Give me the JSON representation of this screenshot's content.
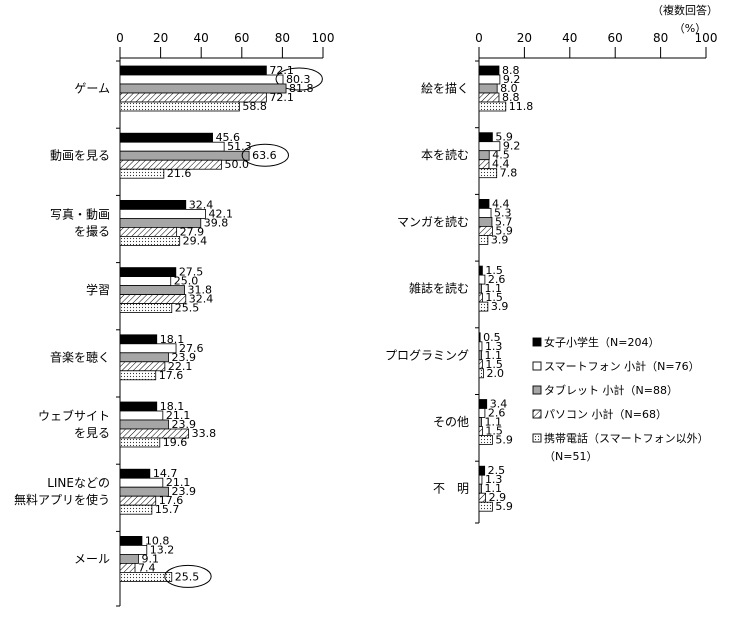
{
  "note": {
    "line1": "（複数回答）",
    "line2": "（%）"
  },
  "legend": {
    "items": [
      {
        "label": "女子小学生（N=204）",
        "pattern": "black"
      },
      {
        "label": "スマートフォン 小計（N=76）",
        "pattern": "white"
      },
      {
        "label": "タブレット 小計（N=88）",
        "pattern": "gray"
      },
      {
        "label": "パソコン 小計（N=68）",
        "pattern": "hatch"
      },
      {
        "label": "携帯電話（スマートフォン以外）",
        "pattern": "dots"
      }
    ],
    "extra": "（N=51）"
  },
  "chart_data": [
    {
      "type": "bar",
      "orientation": "horizontal",
      "xlim": [
        0,
        100
      ],
      "xticks": [
        "0",
        "20",
        "40",
        "60",
        "80",
        "100"
      ],
      "categories": [
        [
          "ゲーム"
        ],
        [
          "動画を見る"
        ],
        [
          "写真・動画",
          "を撮る"
        ],
        [
          "学習"
        ],
        [
          "音楽を聴く"
        ],
        [
          "ウェブサイト",
          "を見る"
        ],
        [
          "LINEなどの",
          "無料アプリを使う"
        ],
        [
          "メール"
        ]
      ],
      "values": [
        [
          72.1,
          80.3,
          81.8,
          72.1,
          58.8
        ],
        [
          45.6,
          51.3,
          63.6,
          50.0,
          21.6
        ],
        [
          32.4,
          42.1,
          39.8,
          27.9,
          29.4
        ],
        [
          27.5,
          25.0,
          31.8,
          32.4,
          25.5
        ],
        [
          18.1,
          27.6,
          23.9,
          22.1,
          17.6
        ],
        [
          18.1,
          21.1,
          23.9,
          33.8,
          19.6
        ],
        [
          14.7,
          21.1,
          23.9,
          17.6,
          15.7
        ],
        [
          10.8,
          13.2,
          9.1,
          7.4,
          25.5
        ]
      ],
      "labels": [
        [
          "72.1",
          "80.3",
          "81.8",
          "72.1",
          "58.8"
        ],
        [
          "45.6",
          "51.3",
          "63.6",
          "50.0",
          "21.6"
        ],
        [
          "32.4",
          "42.1",
          "39.8",
          "27.9",
          "29.4"
        ],
        [
          "27.5",
          "25.0",
          "31.8",
          "32.4",
          "25.5"
        ],
        [
          "18.1",
          "27.6",
          "23.9",
          "22.1",
          "17.6"
        ],
        [
          "18.1",
          "21.1",
          "23.9",
          "33.8",
          "19.6"
        ],
        [
          "14.7",
          "21.1",
          "23.9",
          "17.6",
          "15.7"
        ],
        [
          "10.8",
          "13.2",
          "9.1",
          "7.4",
          "25.5"
        ]
      ],
      "highlighted": [
        [
          0,
          1
        ],
        [
          1,
          2
        ],
        [
          7,
          4
        ]
      ]
    },
    {
      "type": "bar",
      "orientation": "horizontal",
      "xlim": [
        0,
        100
      ],
      "xticks": [
        "0",
        "20",
        "40",
        "60",
        "80",
        "100"
      ],
      "categories": [
        [
          "絵を描く"
        ],
        [
          "本を読む"
        ],
        [
          "マンガを読む"
        ],
        [
          "雑誌を読む"
        ],
        [
          "プログラミング"
        ],
        [
          "その他"
        ],
        [
          "不　明"
        ]
      ],
      "values": [
        [
          8.8,
          9.2,
          8.0,
          8.8,
          11.8
        ],
        [
          5.9,
          9.2,
          4.5,
          4.4,
          7.8
        ],
        [
          4.4,
          5.3,
          5.7,
          5.9,
          3.9
        ],
        [
          1.5,
          2.6,
          1.1,
          1.5,
          3.9
        ],
        [
          0.5,
          1.3,
          1.1,
          1.5,
          2.0
        ],
        [
          3.4,
          2.6,
          1.1,
          1.5,
          5.9
        ],
        [
          2.5,
          1.3,
          1.1,
          2.9,
          5.9
        ]
      ],
      "labels": [
        [
          "8.8",
          "9.2",
          "8.0",
          "8.8",
          "11.8"
        ],
        [
          "5.9",
          "9.2",
          "4.5",
          "4.4",
          "7.8"
        ],
        [
          "4.4",
          "5.3",
          "5.7",
          "5.9",
          "3.9"
        ],
        [
          "1.5",
          "2.6",
          "1.1",
          "1.5",
          "3.9"
        ],
        [
          "0.5",
          "1.3",
          "1.1",
          "1.5",
          "2.0"
        ],
        [
          "3.4",
          "2.6",
          "1.1",
          "1.5",
          "5.9"
        ],
        [
          "2.5",
          "1.3",
          "1.1",
          "2.9",
          "5.9"
        ]
      ],
      "highlighted": []
    }
  ]
}
